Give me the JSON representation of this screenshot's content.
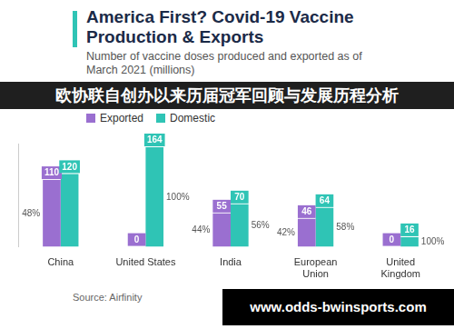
{
  "chart_data": {
    "type": "bar",
    "title": "America First? Covid-19 Vaccine Production & Exports",
    "subtitle": "Number of vaccine doses produced and exported as of March 2021 (millions)",
    "categories": [
      "China",
      "United States",
      "India",
      "European Union",
      "United Kingdom"
    ],
    "series": [
      {
        "name": "Exported",
        "color": "#9a6fd0",
        "values": [
          110,
          0,
          55,
          46,
          0
        ],
        "share_labels": [
          "48%",
          null,
          "44%",
          "42%",
          null
        ]
      },
      {
        "name": "Domestic",
        "color": "#2fc4b5",
        "values": [
          120,
          164,
          70,
          64,
          16
        ],
        "share_labels": [
          null,
          "100%",
          "56%",
          "58%",
          "100%"
        ]
      }
    ],
    "ylim": [
      0,
      170
    ],
    "grid": false,
    "legend": "top-left",
    "data_labels": true,
    "tick_labels": "x",
    "source": "Source: Airfinity",
    "annotations": [
      "欧协联自创办以来历届冠军回顾与发展历程分析",
      "www.odds-bwinsports.com"
    ]
  }
}
